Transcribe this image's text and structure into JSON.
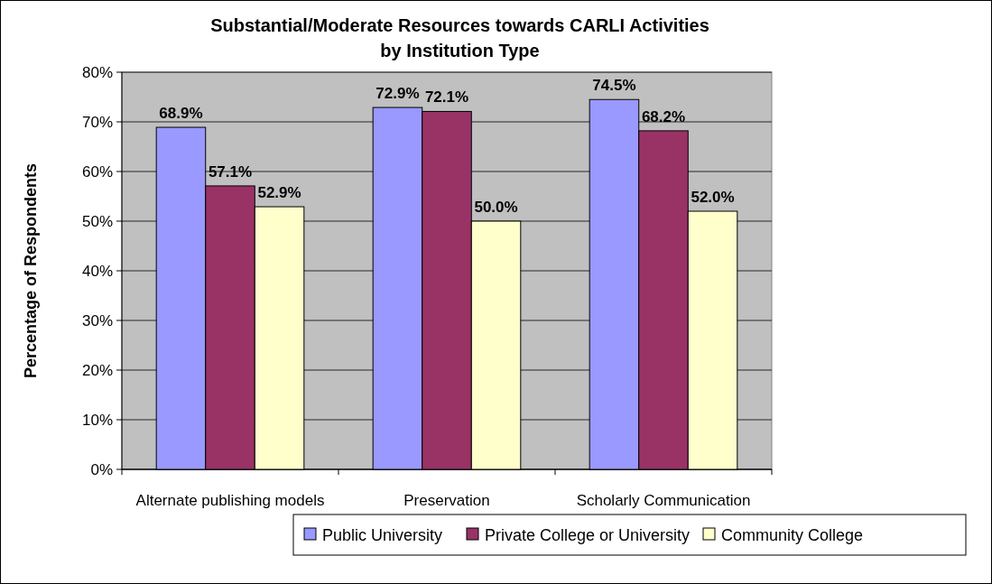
{
  "chart_data": {
    "type": "bar",
    "title": "Substantial/Moderate Resources towards CARLI Activities\nby Institution Type",
    "ylabel": "Percentage of Respondents",
    "categories": [
      "Alternate publishing models",
      "Preservation",
      "Scholarly Communication"
    ],
    "series": [
      {
        "name": "Public University",
        "color": "#9999ff",
        "values": [
          68.9,
          72.9,
          74.5
        ],
        "value_labels": [
          "68.9%",
          "72.9%",
          "74.5%"
        ]
      },
      {
        "name": "Private College or University",
        "color": "#993366",
        "values": [
          57.1,
          72.1,
          68.2
        ],
        "value_labels": [
          "57.1%",
          "72.1%",
          "68.2%"
        ]
      },
      {
        "name": "Community College",
        "color": "#ffffcc",
        "values": [
          52.9,
          50.0,
          52.0
        ],
        "value_labels": [
          "52.9%",
          "50.0%",
          "52.0%"
        ]
      }
    ],
    "ylim": [
      0,
      80
    ],
    "yticks": [
      {
        "value": 0,
        "label": "0%"
      },
      {
        "value": 10,
        "label": "10%"
      },
      {
        "value": 20,
        "label": "20%"
      },
      {
        "value": 30,
        "label": "30%"
      },
      {
        "value": 40,
        "label": "40%"
      },
      {
        "value": 50,
        "label": "50%"
      },
      {
        "value": 60,
        "label": "60%"
      },
      {
        "value": 70,
        "label": "70%"
      },
      {
        "value": 80,
        "label": "80%"
      }
    ],
    "grid": "y",
    "legend": "bottom"
  }
}
